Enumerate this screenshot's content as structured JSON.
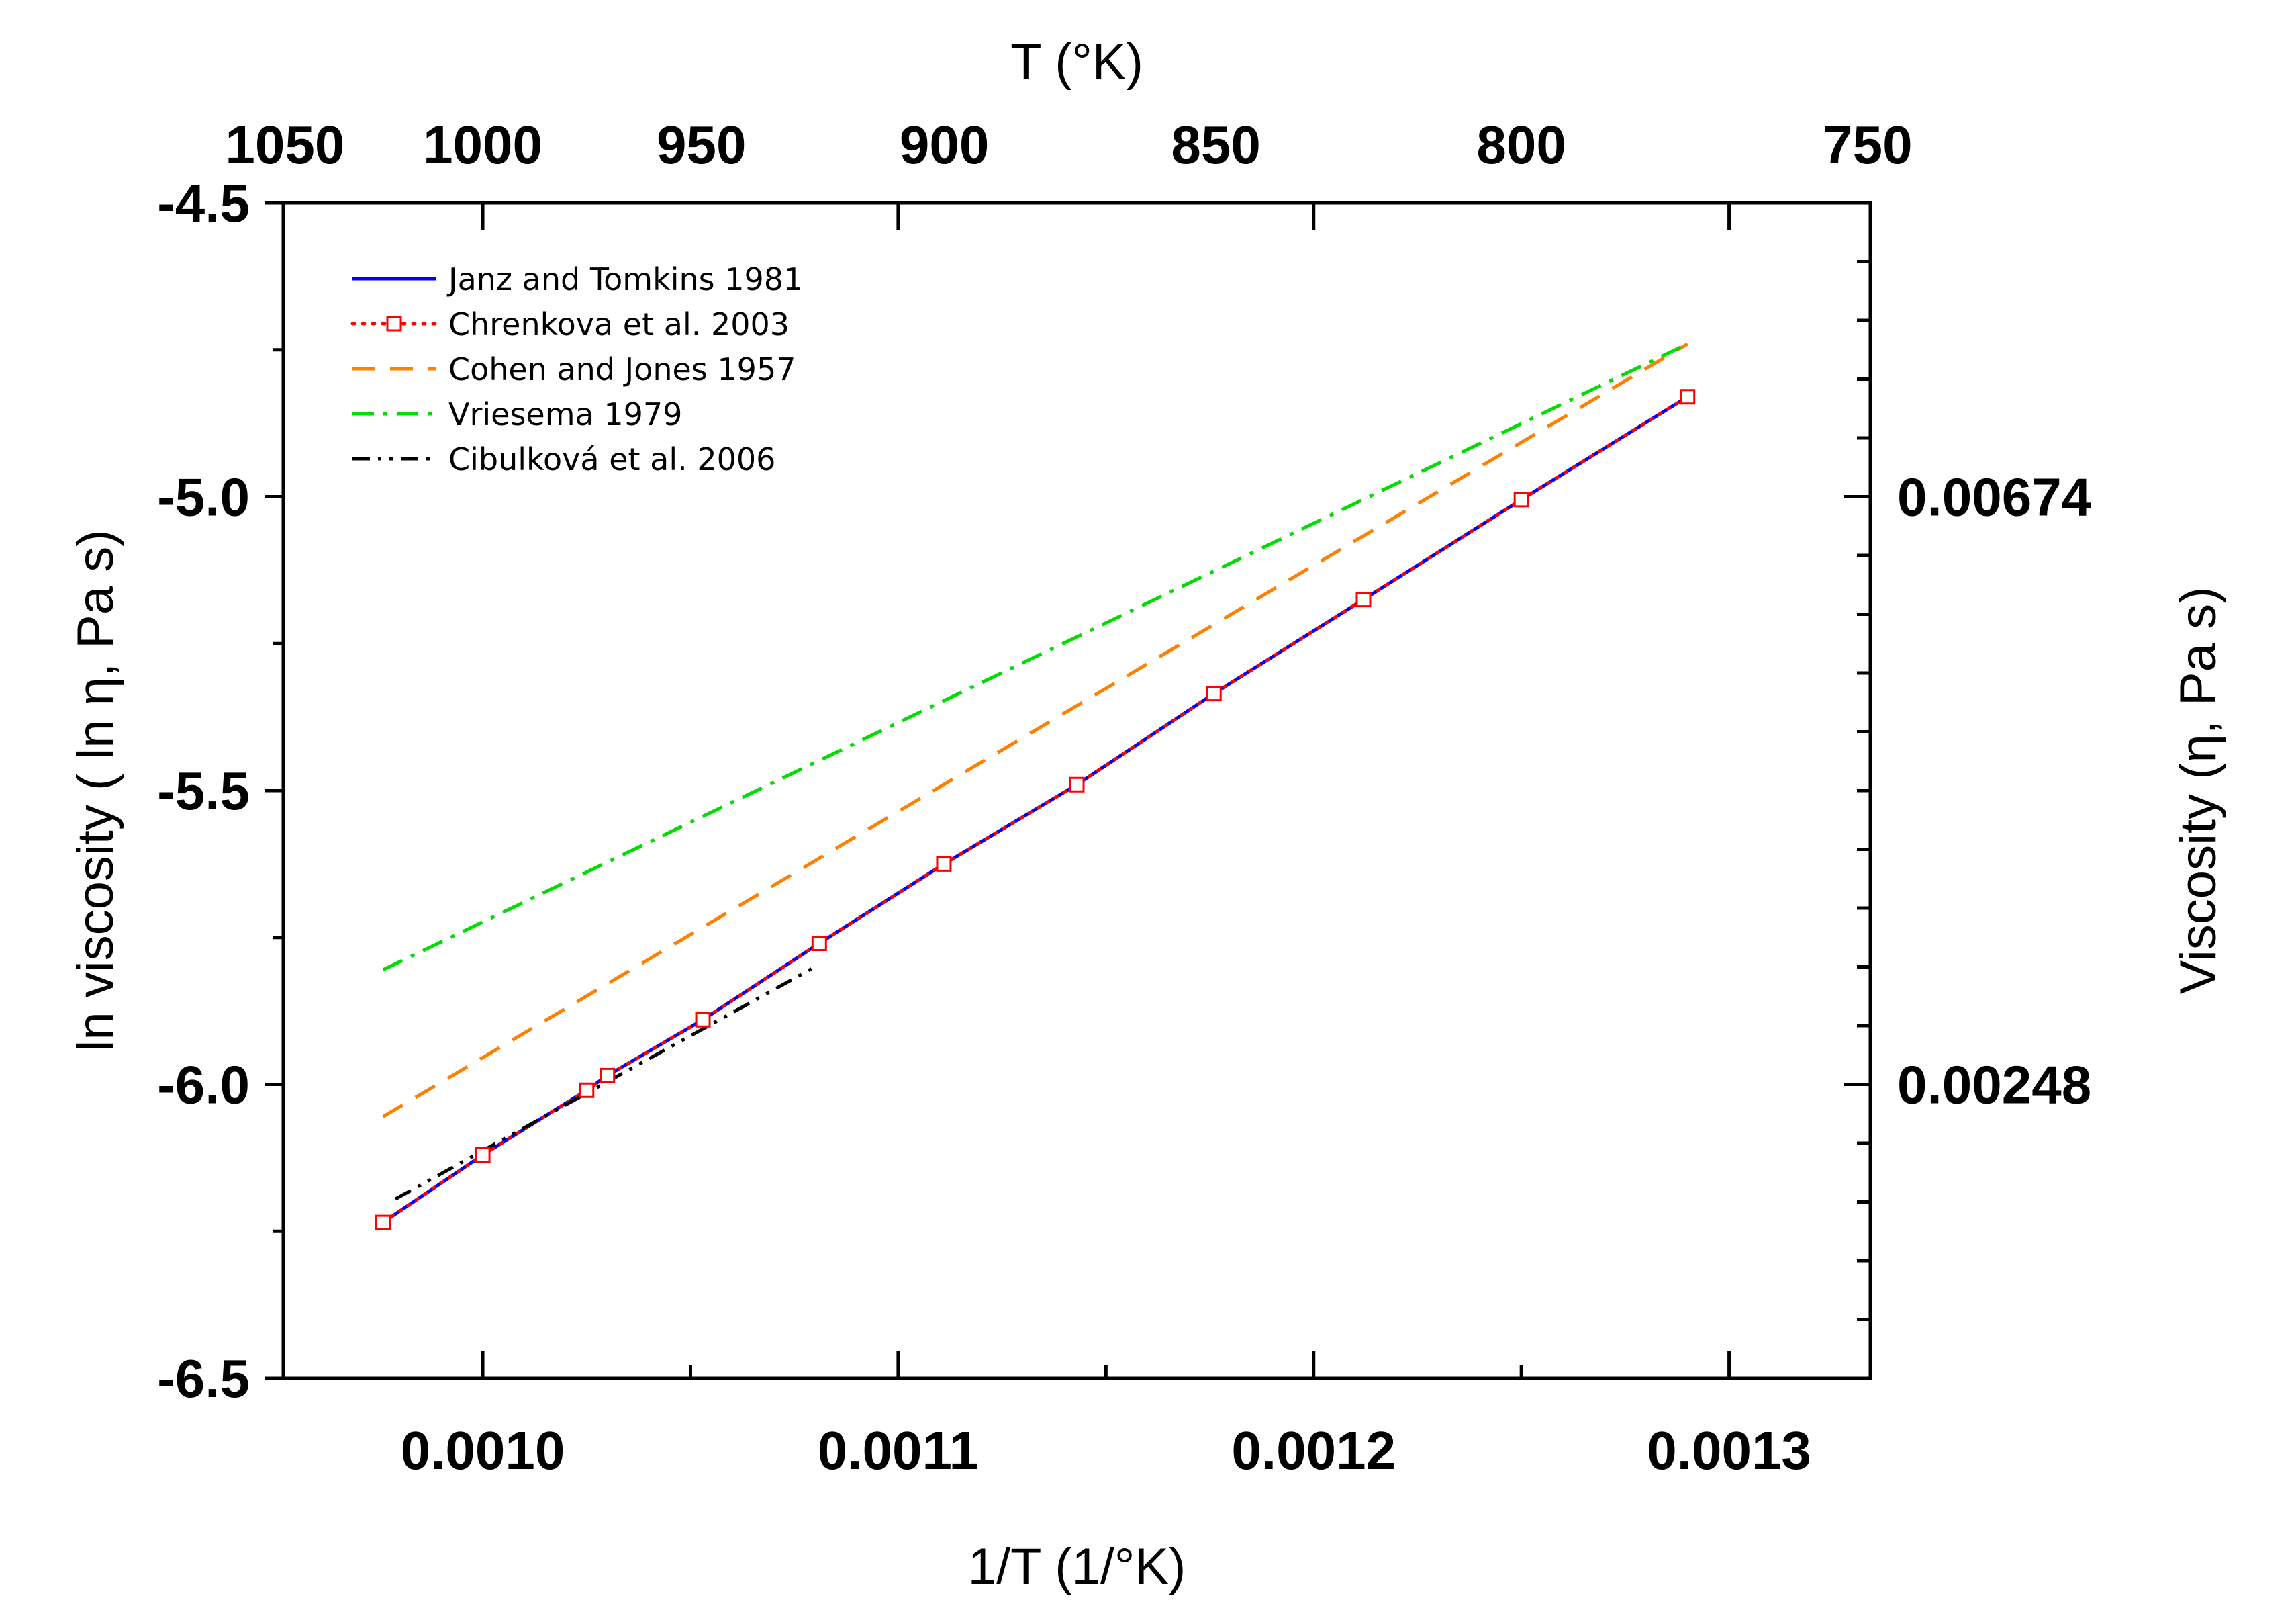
{
  "chart_data": {
    "type": "line",
    "xlabel": "1/T (1/°K)",
    "ylabel": "ln viscosity ( ln η, Pa s)",
    "top_xlabel": "T (°K)",
    "right_ylabel": "Viscosity (η, Pa s)",
    "xlim": [
      0.000952,
      0.001334
    ],
    "ylim": [
      -6.5,
      -4.5
    ],
    "x_ticks": [
      "0.0010",
      "0.0011",
      "0.0012",
      "0.0013"
    ],
    "x_tick_values": [
      0.001,
      0.0011,
      0.0012,
      0.0013
    ],
    "y_ticks": [
      "-4.5",
      "-5.0",
      "-5.5",
      "-6.0",
      "-6.5"
    ],
    "y_tick_values": [
      -4.5,
      -5.0,
      -5.5,
      -6.0,
      -6.5
    ],
    "top_ticks": [
      "1050",
      "1000",
      "950",
      "900",
      "850",
      "800",
      "750"
    ],
    "top_tick_values": [
      1050,
      1000,
      950,
      900,
      850,
      800,
      750
    ],
    "right_ticks": [
      "0.00674",
      "0.00248"
    ],
    "right_tick_values": [
      -5.0,
      -6.0
    ],
    "grid": false,
    "legend_position": "top-left",
    "series": [
      {
        "name": "Janz and Tomkins 1981",
        "color": "#0000ff",
        "style": "solid",
        "x": [
          0.000976,
          0.001,
          0.001025,
          0.00103,
          0.001053,
          0.001081,
          0.001111,
          0.001143,
          0.001176,
          0.001212,
          0.00125,
          0.00129
        ],
        "y": [
          -6.235,
          -6.12,
          -6.01,
          -5.985,
          -5.89,
          -5.76,
          -5.625,
          -5.49,
          -5.335,
          -5.175,
          -5.005,
          -4.83
        ]
      },
      {
        "name": "Chrenkova et al. 2003",
        "color": "#ff0000",
        "style": "dotted-square",
        "x": [
          0.000976,
          0.001,
          0.001025,
          0.00103,
          0.001053,
          0.001081,
          0.001111,
          0.001143,
          0.001176,
          0.001212,
          0.00125,
          0.00129
        ],
        "y": [
          -6.235,
          -6.12,
          -6.01,
          -5.985,
          -5.89,
          -5.76,
          -5.625,
          -5.49,
          -5.335,
          -5.175,
          -5.005,
          -4.83
        ]
      },
      {
        "name": "Cohen and Jones 1957",
        "color": "#ff8000",
        "style": "dash",
        "x": [
          0.000976,
          0.00129
        ],
        "y": [
          -6.055,
          -4.74
        ]
      },
      {
        "name": "Vriesema 1979",
        "color": "#00dd00",
        "style": "dash-dot",
        "x": [
          0.000976,
          0.00129
        ],
        "y": [
          -5.805,
          -4.74
        ]
      },
      {
        "name": "Cibulková et al. 2006",
        "color": "#000000",
        "style": "dash-dot-dot",
        "x": [
          0.000979,
          0.00108
        ],
        "y": [
          -6.195,
          -5.8
        ]
      }
    ]
  }
}
